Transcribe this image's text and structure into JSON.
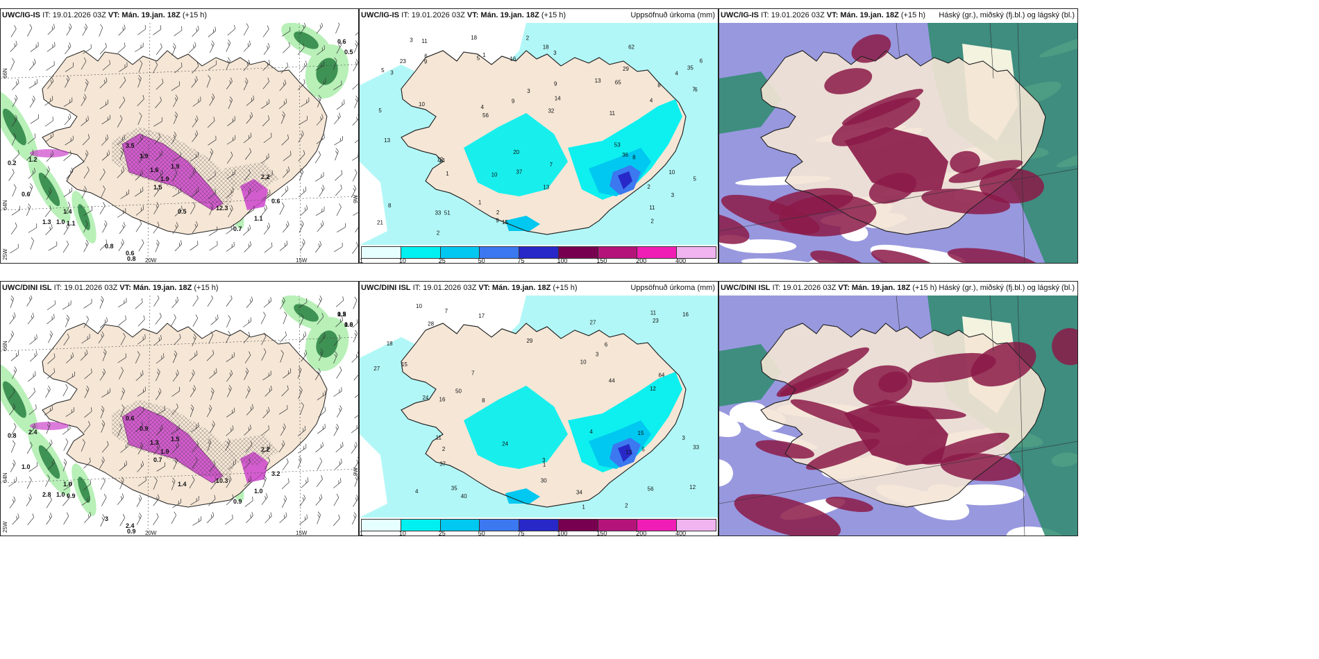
{
  "rows": [
    {
      "panels": [
        {
          "model": "UWC/IG-IS",
          "init": "IT: 19.01.2026 03Z",
          "valid_label": "VT:",
          "valid": "Mán. 19.jan. 18Z",
          "lead": "(+15 h)",
          "right_title": "",
          "kind": "wind",
          "values": [
            "0.6",
            "0.5",
            "0.2",
            "0.6",
            "3.5",
            "1.9",
            "1.6",
            "1.9",
            "1.9",
            "2.2",
            "0.6",
            "1.4",
            "1.1",
            "0.5",
            "12.3",
            "0.8",
            "0.6",
            "0.8",
            "0.7",
            "1.0",
            "1.1",
            "1.3",
            "1.2",
            "1.5"
          ]
        },
        {
          "model": "UWC/IG-IS",
          "init": "IT: 19.01.2026 03Z",
          "valid_label": "VT:",
          "valid": "Mán. 19.jan. 18Z",
          "lead": "(+15 h)",
          "right_title": "Uppsöfnuð úrkoma (mm)",
          "kind": "precip",
          "values": [
            "1",
            "2",
            "1",
            "2",
            "2",
            "3",
            "11",
            "14",
            "6",
            "1",
            "2",
            "6",
            "3",
            "5",
            "11",
            "9",
            "10",
            "4",
            "5",
            "2",
            "7",
            "4",
            "23",
            "13",
            "18",
            "37",
            "29",
            "36",
            "51",
            "21",
            "32",
            "62",
            "6",
            "5",
            "20",
            "18",
            "15",
            "13",
            "16",
            "10",
            "9",
            "12",
            "14",
            "56",
            "33",
            "35",
            "53",
            "65",
            "13",
            "10",
            "11",
            "8",
            "9",
            "8",
            "9",
            "8",
            "7",
            "3",
            "4",
            "5",
            "3",
            "3"
          ]
        },
        {
          "model": "UWC/IG-IS",
          "init": "IT: 19.01.2026 03Z",
          "valid_label": "VT:",
          "valid": "Mán. 19.jan. 18Z",
          "lead": "(+15 h)",
          "right_title": "Háský (gr.), miðský (fj.bl.) og lágský (bl.)",
          "kind": "cloud",
          "values": []
        }
      ]
    },
    {
      "panels": [
        {
          "model": "UWC/DINI ISL",
          "init": "IT: 19.01.2026 03Z",
          "valid_label": "VT:",
          "valid": "Mán. 19.jan. 18Z",
          "lead": "(+15 h)",
          "right_title": "",
          "kind": "wind",
          "values": [
            "1.2",
            "0.6",
            "0.8",
            "1.0",
            "0.6",
            "0.9",
            "1.3",
            "1.9",
            "1.5",
            "2.2",
            "3.2",
            "1.0",
            "1.0",
            "1.4",
            "10.3",
            "3",
            "2.4",
            "0.9",
            "0.9",
            "1.0",
            "0.9",
            "2.8",
            "2.4",
            "0.7",
            "0.5",
            "1.0"
          ]
        },
        {
          "model": "UWC/DINI ISL",
          "init": "IT: 19.01.2026 03Z",
          "valid_label": "VT:",
          "valid": "Mán. 19.jan. 18Z",
          "lead": "(+15 h)",
          "right_title": "Uppsöfnuð úrkoma (mm)",
          "kind": "precip",
          "values": [
            "3",
            "2",
            "1",
            "4",
            "3",
            "7",
            "17",
            "6",
            "1",
            "12",
            "4",
            "23",
            "27",
            "44",
            "40",
            "28",
            "37",
            "35",
            "27",
            "29",
            "15",
            "15",
            "56",
            "24",
            "16",
            "10",
            "13",
            "24",
            "11",
            "50",
            "30",
            "64",
            "12",
            "34",
            "33",
            "16",
            "18",
            "11",
            "8",
            "10",
            "5",
            "3",
            "2",
            "7"
          ]
        },
        {
          "model": "UWC/DINI ISL",
          "init": "IT: 19.01.2026 03Z",
          "valid_label": "VT:",
          "valid": "Mán. 19.jan. 18Z",
          "lead": "(+15 h)",
          "right_title": "Háský (gr.), miðský (fj.bl.) og lágský (bl.)",
          "kind": "cloud",
          "values": []
        }
      ]
    }
  ],
  "coords": {
    "lat66": "66N",
    "lat64": "64N",
    "lon25": "25W",
    "lon20": "20W",
    "lon15": "15W",
    "lon9": "9W"
  },
  "colorbar": {
    "ticks": [
      "1",
      "10",
      "25",
      "50",
      "75",
      "100",
      "150",
      "200",
      "400"
    ],
    "colors": [
      "#e6ffff",
      "#00f0f0",
      "#00c8f0",
      "#3c78f0",
      "#2828c8",
      "#780050",
      "#b4147a",
      "#f01eb4",
      "#f0b4f0"
    ]
  },
  "palette": {
    "land": "#f5e6d6",
    "coast": "#222222",
    "sea_precip": "#b2f7f7",
    "wind_green_light": "#b8f0b8",
    "wind_green_dark": "#1f7a3a",
    "wind_magenta": "#cc44cc",
    "cloud_high": "#2e8b6e",
    "cloud_mid": "#8b1a48",
    "cloud_low": "#4444c4"
  }
}
